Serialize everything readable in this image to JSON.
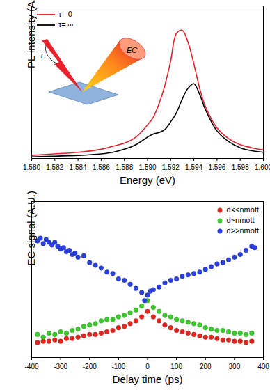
{
  "chart_data": [
    {
      "type": "line",
      "x_label": "Energy (eV)",
      "y_label": "PL intensity (A.U.)",
      "x": [
        1.58,
        1.582,
        1.584,
        1.586,
        1.587,
        1.588,
        1.589,
        1.59,
        1.5905,
        1.591,
        1.5915,
        1.592,
        1.5925,
        1.593,
        1.5935,
        1.594,
        1.5945,
        1.595,
        1.596,
        1.597,
        1.598,
        1.599,
        1.6
      ],
      "series": [
        {
          "name": "τ= 0",
          "color": "#e8202a",
          "line_style": "solid",
          "values": [
            0.02,
            0.03,
            0.04,
            0.06,
            0.08,
            0.1,
            0.14,
            0.22,
            0.27,
            0.36,
            0.48,
            0.64,
            0.82,
            0.84,
            0.76,
            0.62,
            0.46,
            0.34,
            0.2,
            0.13,
            0.09,
            0.07,
            0.055
          ]
        },
        {
          "name": "τ= ∞",
          "color": "#000000",
          "line_style": "solid",
          "values": [
            0.01,
            0.015,
            0.02,
            0.03,
            0.04,
            0.06,
            0.09,
            0.14,
            0.16,
            0.17,
            0.19,
            0.24,
            0.3,
            0.39,
            0.46,
            0.49,
            0.42,
            0.32,
            0.18,
            0.11,
            0.07,
            0.05,
            0.04
          ]
        }
      ],
      "xlim": [
        1.58,
        1.6
      ],
      "xticks": [
        {
          "value": 1.58,
          "label": "1.580"
        },
        {
          "value": 1.582,
          "label": "1.582"
        },
        {
          "value": 1.584,
          "label": "1.584"
        },
        {
          "value": 1.586,
          "label": "1.586"
        },
        {
          "value": 1.588,
          "label": "1.588"
        },
        {
          "value": 1.59,
          "label": "1.590"
        },
        {
          "value": 1.592,
          "label": "1.592"
        },
        {
          "value": 1.594,
          "label": "1.594"
        },
        {
          "value": 1.596,
          "label": "1.596"
        },
        {
          "value": 1.598,
          "label": "1.598"
        },
        {
          "value": 1.6,
          "label": "1.600"
        }
      ],
      "ylim": [
        0,
        1
      ],
      "tick_labels": "x",
      "legend": "upper left",
      "annotations": [
        "τ",
        "EC"
      ]
    },
    {
      "type": "scatter",
      "x_label": "Delay time (ps)",
      "y_label": "EC signal (A.U.)",
      "series": [
        {
          "name": "d<<nmott",
          "color": "#e0261e",
          "marker": "circle",
          "x": [
            -380,
            -360,
            -340,
            -320,
            -300,
            -280,
            -260,
            -240,
            -220,
            -200,
            -180,
            -160,
            -140,
            -120,
            -100,
            -80,
            -60,
            -40,
            -20,
            0,
            20,
            40,
            60,
            80,
            100,
            120,
            140,
            160,
            180,
            200,
            220,
            240,
            260,
            280,
            300,
            320,
            340,
            360
          ],
          "values": [
            0.11,
            0.12,
            0.12,
            0.13,
            0.12,
            0.14,
            0.14,
            0.15,
            0.16,
            0.17,
            0.17,
            0.18,
            0.19,
            0.2,
            0.22,
            0.23,
            0.25,
            0.27,
            0.3,
            0.34,
            0.3,
            0.27,
            0.24,
            0.22,
            0.2,
            0.19,
            0.18,
            0.17,
            0.16,
            0.15,
            0.15,
            0.14,
            0.13,
            0.13,
            0.12,
            0.12,
            0.11,
            0.12
          ]
        },
        {
          "name": "d~nmott",
          "color": "#3ccb2c",
          "marker": "circle",
          "x": [
            -380,
            -360,
            -340,
            -320,
            -300,
            -280,
            -260,
            -240,
            -220,
            -200,
            -180,
            -160,
            -140,
            -120,
            -100,
            -80,
            -60,
            -40,
            -20,
            0,
            20,
            40,
            60,
            80,
            100,
            120,
            140,
            160,
            180,
            200,
            220,
            240,
            260,
            280,
            300,
            320,
            340,
            360
          ],
          "values": [
            0.17,
            0.15,
            0.18,
            0.17,
            0.19,
            0.18,
            0.2,
            0.21,
            0.23,
            0.24,
            0.25,
            0.27,
            0.28,
            0.28,
            0.3,
            0.31,
            0.33,
            0.35,
            0.38,
            0.42,
            0.37,
            0.34,
            0.31,
            0.3,
            0.28,
            0.27,
            0.26,
            0.25,
            0.24,
            0.22,
            0.21,
            0.2,
            0.2,
            0.19,
            0.18,
            0.18,
            0.17,
            0.18
          ]
        },
        {
          "name": "d>>nmott",
          "color": "#2a3fe0",
          "marker": "circle",
          "x": [
            -380,
            -370,
            -360,
            -350,
            -340,
            -330,
            -320,
            -310,
            -300,
            -290,
            -280,
            -270,
            -260,
            -250,
            -240,
            -220,
            -200,
            -180,
            -160,
            -140,
            -120,
            -100,
            -80,
            -60,
            -40,
            -20,
            -10,
            0,
            10,
            20,
            40,
            60,
            80,
            100,
            120,
            140,
            160,
            180,
            200,
            220,
            240,
            260,
            280,
            300,
            320,
            340,
            360,
            370
          ],
          "values": [
            0.86,
            0.88,
            0.84,
            0.87,
            0.85,
            0.83,
            0.85,
            0.82,
            0.8,
            0.81,
            0.78,
            0.79,
            0.76,
            0.77,
            0.74,
            0.75,
            0.7,
            0.68,
            0.66,
            0.63,
            0.62,
            0.58,
            0.57,
            0.54,
            0.51,
            0.48,
            0.42,
            0.46,
            0.49,
            0.5,
            0.52,
            0.55,
            0.57,
            0.58,
            0.6,
            0.61,
            0.62,
            0.63,
            0.65,
            0.67,
            0.69,
            0.7,
            0.72,
            0.74,
            0.76,
            0.79,
            0.82,
            0.81
          ]
        }
      ],
      "xlim": [
        -400,
        400
      ],
      "xticks": [
        -400,
        -300,
        -200,
        -100,
        0,
        100,
        200,
        300,
        400
      ],
      "ylim": [
        0,
        1.15
      ],
      "tick_labels": "x",
      "legend": "upper right"
    }
  ]
}
